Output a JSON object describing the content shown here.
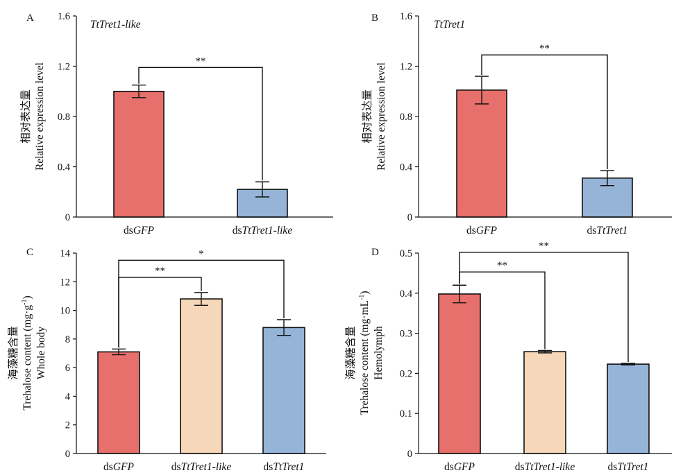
{
  "panels": [
    {
      "id": "A",
      "letter": "A",
      "title": "TtTret1-like",
      "ylabel_cn": "相对表达量",
      "ylabel_en": "Relative expression level",
      "ylabel_line3": "",
      "ylabel_unit_base": "",
      "ylabel_unit_sup": "",
      "ylabel_unit_close": ""
    },
    {
      "id": "B",
      "letter": "B",
      "title": "TtTret1",
      "ylabel_cn": "相对表达量",
      "ylabel_en": "Relative expression level",
      "ylabel_line3": "",
      "ylabel_unit_base": "",
      "ylabel_unit_sup": "",
      "ylabel_unit_close": ""
    },
    {
      "id": "C",
      "letter": "C",
      "title": "",
      "ylabel_cn": "海藻糖含量",
      "ylabel_en": "Trehalose content (mg·g",
      "ylabel_unit_sup": "-1",
      "ylabel_unit_close": ")",
      "ylabel_line3": "Whole body"
    },
    {
      "id": "D",
      "letter": "D",
      "title": "",
      "ylabel_cn": "海藻糖含量",
      "ylabel_en": "Trehalose content (mg·mL",
      "ylabel_unit_sup": "-1",
      "ylabel_unit_close": ")",
      "ylabel_line3": "Hemolymph"
    }
  ],
  "colors": {
    "dsGFP": "#e8706c",
    "dsTtTret1-like": "#f6d7b9",
    "dsTtTret1": "#95b4d8",
    "axis": "#111111"
  },
  "chart_data": [
    {
      "id": "A",
      "type": "bar",
      "title": "TtTret1-like",
      "ylabel": "相对表达量 Relative expression level",
      "ylim": [
        0,
        1.6
      ],
      "yticks": [
        "0",
        "0.4",
        "0.8",
        "1.2",
        "1.6"
      ],
      "categories": [
        {
          "prefix": "ds",
          "name": "GFP"
        },
        {
          "prefix": "ds",
          "name": "TtTret1-like"
        }
      ],
      "values": [
        1.0,
        0.22
      ],
      "errors": [
        0.05,
        0.06
      ],
      "colors": [
        "#e8706c",
        "#95b4d8"
      ],
      "significance": [
        {
          "from": 0,
          "to": 1,
          "label": "**",
          "level": 1.19
        }
      ]
    },
    {
      "id": "B",
      "type": "bar",
      "title": "TtTret1",
      "ylabel": "相对表达量 Relative expression level",
      "ylim": [
        0,
        1.6
      ],
      "yticks": [
        "0",
        "0.4",
        "0.8",
        "1.2",
        "1.6"
      ],
      "categories": [
        {
          "prefix": "ds",
          "name": "GFP"
        },
        {
          "prefix": "ds",
          "name": "TtTret1"
        }
      ],
      "values": [
        1.01,
        0.31
      ],
      "errors": [
        0.11,
        0.06
      ],
      "colors": [
        "#e8706c",
        "#95b4d8"
      ],
      "significance": [
        {
          "from": 0,
          "to": 1,
          "label": "**",
          "level": 1.29
        }
      ]
    },
    {
      "id": "C",
      "type": "bar",
      "title": "",
      "ylabel": "海藻糖含量 Trehalose content (mg·g-1) Whole body",
      "ylim": [
        0,
        14
      ],
      "yticks": [
        "0",
        "2",
        "4",
        "6",
        "8",
        "10",
        "12",
        "14"
      ],
      "categories": [
        {
          "prefix": "ds",
          "name": "GFP"
        },
        {
          "prefix": "ds",
          "name": "TtTret1-like"
        },
        {
          "prefix": "ds",
          "name": "TtTret1"
        }
      ],
      "values": [
        7.1,
        10.8,
        8.8
      ],
      "errors": [
        0.2,
        0.45,
        0.55
      ],
      "colors": [
        "#e8706c",
        "#f6d7b9",
        "#95b4d8"
      ],
      "significance": [
        {
          "from": 0,
          "to": 1,
          "label": "**",
          "level": 12.3
        },
        {
          "from": 0,
          "to": 2,
          "label": "*",
          "level": 13.5
        }
      ]
    },
    {
      "id": "D",
      "type": "bar",
      "title": "",
      "ylabel": "海藻糖含量 Trehalose content (mg·mL-1) Hemolymph",
      "ylim": [
        0,
        0.5
      ],
      "yticks": [
        "0",
        "0.1",
        "0.2",
        "0.3",
        "0.4",
        "0.5"
      ],
      "categories": [
        {
          "prefix": "ds",
          "name": "GFP"
        },
        {
          "prefix": "ds",
          "name": "TtTret1-like"
        },
        {
          "prefix": "ds",
          "name": "TtTret1"
        }
      ],
      "values": [
        0.398,
        0.254,
        0.223
      ],
      "errors": [
        0.022,
        0.003,
        0.002
      ],
      "colors": [
        "#e8706c",
        "#f6d7b9",
        "#95b4d8"
      ],
      "significance": [
        {
          "from": 0,
          "to": 1,
          "label": "**",
          "level": 0.453
        },
        {
          "from": 0,
          "to": 2,
          "label": "**",
          "level": 0.502
        }
      ]
    }
  ]
}
